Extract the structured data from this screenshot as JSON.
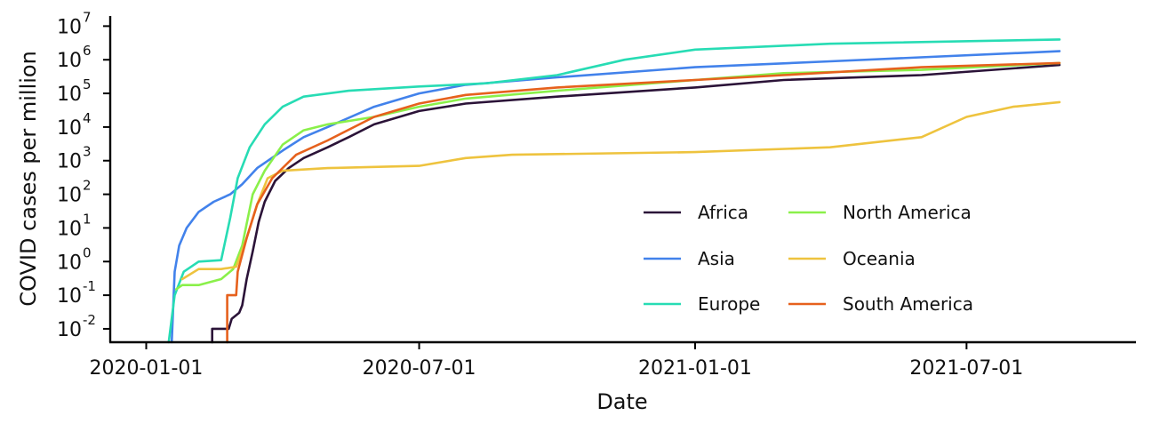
{
  "chart_data": {
    "type": "line",
    "title": "",
    "xlabel": "Date",
    "ylabel": "COVID cases per million",
    "y_scale": "log10",
    "ylim": [
      0.004,
      20000000
    ],
    "xlim": [
      "2019-12-08",
      "2021-10-22"
    ],
    "x_ticks": [
      "2020-01-01",
      "2020-07-01",
      "2021-01-01",
      "2021-07-01"
    ],
    "y_ticks": [
      {
        "value": 0.01,
        "base": "10",
        "exp": "-2"
      },
      {
        "value": 0.1,
        "base": "10",
        "exp": "-1"
      },
      {
        "value": 1,
        "base": "10",
        "exp": "0"
      },
      {
        "value": 10,
        "base": "10",
        "exp": "1"
      },
      {
        "value": 100,
        "base": "10",
        "exp": "2"
      },
      {
        "value": 1000,
        "base": "10",
        "exp": "3"
      },
      {
        "value": 10000,
        "base": "10",
        "exp": "4"
      },
      {
        "value": 100000,
        "base": "10",
        "exp": "5"
      },
      {
        "value": 1000000,
        "base": "10",
        "exp": "6"
      },
      {
        "value": 10000000,
        "base": "10",
        "exp": "7"
      }
    ],
    "grid": false,
    "legend_position": "bottom-right",
    "legend_columns": 2,
    "series": [
      {
        "name": "Africa",
        "color": "#2b1338",
        "points": [
          [
            "2020-02-14",
            0.004
          ],
          [
            "2020-02-14",
            0.01
          ],
          [
            "2020-02-25",
            0.01
          ],
          [
            "2020-02-27",
            0.02
          ],
          [
            "2020-03-03",
            0.03
          ],
          [
            "2020-03-05",
            0.05
          ],
          [
            "2020-03-08",
            0.3
          ],
          [
            "2020-03-12",
            2
          ],
          [
            "2020-03-16",
            15
          ],
          [
            "2020-03-20",
            60
          ],
          [
            "2020-03-27",
            250
          ],
          [
            "2020-04-05",
            600
          ],
          [
            "2020-04-15",
            1200
          ],
          [
            "2020-05-01",
            2500
          ],
          [
            "2020-05-15",
            5000
          ],
          [
            "2020-06-01",
            12000
          ],
          [
            "2020-07-01",
            30000
          ],
          [
            "2020-08-01",
            50000
          ],
          [
            "2020-10-01",
            80000
          ],
          [
            "2021-01-01",
            150000
          ],
          [
            "2021-03-01",
            250000
          ],
          [
            "2021-06-01",
            350000
          ],
          [
            "2021-09-01",
            700000
          ]
        ]
      },
      {
        "name": "Asia",
        "color": "#4282eb",
        "points": [
          [
            "2020-01-18",
            0.004
          ],
          [
            "2020-01-20",
            0.5
          ],
          [
            "2020-01-23",
            3
          ],
          [
            "2020-01-28",
            10
          ],
          [
            "2020-02-05",
            30
          ],
          [
            "2020-02-15",
            60
          ],
          [
            "2020-02-26",
            100
          ],
          [
            "2020-03-05",
            200
          ],
          [
            "2020-03-15",
            600
          ],
          [
            "2020-04-01",
            2000
          ],
          [
            "2020-04-15",
            5000
          ],
          [
            "2020-05-01",
            10000
          ],
          [
            "2020-06-01",
            40000
          ],
          [
            "2020-07-01",
            100000
          ],
          [
            "2020-08-01",
            180000
          ],
          [
            "2020-10-01",
            300000
          ],
          [
            "2021-01-01",
            600000
          ],
          [
            "2021-04-01",
            900000
          ],
          [
            "2021-09-01",
            1800000
          ]
        ]
      },
      {
        "name": "Europe",
        "color": "#27dcb4",
        "points": [
          [
            "2020-01-16",
            0.004
          ],
          [
            "2020-01-20",
            0.1
          ],
          [
            "2020-01-26",
            0.5
          ],
          [
            "2020-02-05",
            1
          ],
          [
            "2020-02-20",
            1.1
          ],
          [
            "2020-02-26",
            20
          ],
          [
            "2020-03-02",
            300
          ],
          [
            "2020-03-10",
            2500
          ],
          [
            "2020-03-20",
            12000
          ],
          [
            "2020-04-01",
            40000
          ],
          [
            "2020-04-15",
            80000
          ],
          [
            "2020-05-15",
            120000
          ],
          [
            "2020-07-01",
            160000
          ],
          [
            "2020-08-15",
            200000
          ],
          [
            "2020-10-01",
            350000
          ],
          [
            "2020-11-15",
            1000000
          ],
          [
            "2021-01-01",
            2000000
          ],
          [
            "2021-04-01",
            3000000
          ],
          [
            "2021-09-01",
            4000000
          ]
        ]
      },
      {
        "name": "North America",
        "color": "#8af04a",
        "points": [
          [
            "2020-01-21",
            0.15
          ],
          [
            "2020-01-25",
            0.2
          ],
          [
            "2020-02-05",
            0.2
          ],
          [
            "2020-02-20",
            0.3
          ],
          [
            "2020-02-28",
            0.6
          ],
          [
            "2020-03-05",
            3
          ],
          [
            "2020-03-12",
            100
          ],
          [
            "2020-03-20",
            500
          ],
          [
            "2020-04-01",
            3000
          ],
          [
            "2020-04-15",
            8000
          ],
          [
            "2020-05-01",
            12000
          ],
          [
            "2020-06-01",
            20000
          ],
          [
            "2020-07-01",
            40000
          ],
          [
            "2020-08-01",
            70000
          ],
          [
            "2020-10-01",
            120000
          ],
          [
            "2021-01-01",
            250000
          ],
          [
            "2021-03-01",
            400000
          ],
          [
            "2021-06-01",
            500000
          ],
          [
            "2021-09-01",
            800000
          ]
        ]
      },
      {
        "name": "Oceania",
        "color": "#eec33e",
        "points": [
          [
            "2020-01-25",
            0.3
          ],
          [
            "2020-02-05",
            0.6
          ],
          [
            "2020-02-20",
            0.6
          ],
          [
            "2020-03-01",
            0.7
          ],
          [
            "2020-03-08",
            5
          ],
          [
            "2020-03-15",
            50
          ],
          [
            "2020-03-22",
            300
          ],
          [
            "2020-04-01",
            500
          ],
          [
            "2020-05-01",
            600
          ],
          [
            "2020-07-01",
            700
          ],
          [
            "2020-08-01",
            1200
          ],
          [
            "2020-09-01",
            1500
          ],
          [
            "2021-01-01",
            1800
          ],
          [
            "2021-04-01",
            2500
          ],
          [
            "2021-06-01",
            5000
          ],
          [
            "2021-07-01",
            20000
          ],
          [
            "2021-08-01",
            40000
          ],
          [
            "2021-09-01",
            55000
          ]
        ]
      },
      {
        "name": "South America",
        "color": "#e6611d",
        "points": [
          [
            "2020-02-24",
            0.004
          ],
          [
            "2020-02-24",
            0.1
          ],
          [
            "2020-03-01",
            0.1
          ],
          [
            "2020-03-02",
            0.5
          ],
          [
            "2020-03-08",
            5
          ],
          [
            "2020-03-15",
            50
          ],
          [
            "2020-03-25",
            300
          ],
          [
            "2020-04-10",
            1500
          ],
          [
            "2020-05-01",
            4000
          ],
          [
            "2020-06-01",
            20000
          ],
          [
            "2020-07-01",
            50000
          ],
          [
            "2020-08-01",
            90000
          ],
          [
            "2020-10-01",
            150000
          ],
          [
            "2021-01-01",
            250000
          ],
          [
            "2021-03-01",
            350000
          ],
          [
            "2021-06-01",
            600000
          ],
          [
            "2021-09-01",
            800000
          ]
        ]
      }
    ]
  }
}
